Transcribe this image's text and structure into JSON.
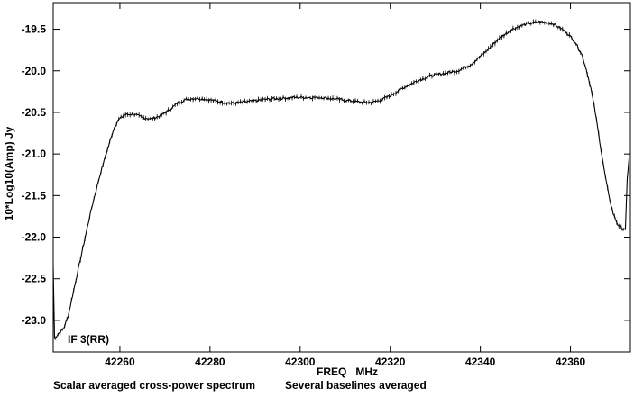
{
  "chart_data": {
    "type": "line",
    "xlabel": "FREQ   MHz",
    "ylabel": "10*Log10(Amp) Jy",
    "annotation": "IF 3(RR)",
    "caption_left": "Scalar averaged cross-power spectrum",
    "caption_right": "Several baselines averaged",
    "xlim": [
      42245.2,
      42373.3
    ],
    "ylim": [
      -23.38,
      -19.18
    ],
    "x_ticks": [
      42260,
      42280,
      42300,
      42320,
      42340,
      42360
    ],
    "y_ticks": [
      -19.5,
      -20.0,
      -20.5,
      -21.0,
      -21.5,
      -22.0,
      -22.5,
      -23.0
    ],
    "x_tick_labels": [
      "42260",
      "42280",
      "42300",
      "42320",
      "42340",
      "42360"
    ],
    "y_tick_labels": [
      "-19.5",
      "-20.0",
      "-20.5",
      "-21.0",
      "-21.5",
      "-22.0",
      "-22.5",
      "-23.0"
    ],
    "series": [
      {
        "color": "#000000",
        "points": [
          [
            42245.2,
            -22.35
          ],
          [
            42245.5,
            -23.22
          ],
          [
            42246.5,
            -23.15
          ],
          [
            42247.5,
            -23.1
          ],
          [
            42248.5,
            -22.95
          ],
          [
            42249.5,
            -22.7
          ],
          [
            42250.5,
            -22.45
          ],
          [
            42251.5,
            -22.2
          ],
          [
            42252.5,
            -21.95
          ],
          [
            42253.5,
            -21.7
          ],
          [
            42254.5,
            -21.48
          ],
          [
            42255.5,
            -21.27
          ],
          [
            42256.5,
            -21.08
          ],
          [
            42257.5,
            -20.9
          ],
          [
            42258.5,
            -20.72
          ],
          [
            42259.5,
            -20.6
          ],
          [
            42261.0,
            -20.53
          ],
          [
            42263.0,
            -20.52
          ],
          [
            42265.0,
            -20.56
          ],
          [
            42267.0,
            -20.58
          ],
          [
            42269.0,
            -20.54
          ],
          [
            42271.0,
            -20.47
          ],
          [
            42273.0,
            -20.38
          ],
          [
            42275.0,
            -20.34
          ],
          [
            42277.0,
            -20.33
          ],
          [
            42279.0,
            -20.34
          ],
          [
            42281.0,
            -20.36
          ],
          [
            42283.0,
            -20.38
          ],
          [
            42285.0,
            -20.39
          ],
          [
            42287.0,
            -20.38
          ],
          [
            42290.0,
            -20.36
          ],
          [
            42293.0,
            -20.34
          ],
          [
            42296.0,
            -20.33
          ],
          [
            42299.0,
            -20.32
          ],
          [
            42302.0,
            -20.32
          ],
          [
            42305.0,
            -20.32
          ],
          [
            42308.0,
            -20.34
          ],
          [
            42311.0,
            -20.36
          ],
          [
            42314.0,
            -20.38
          ],
          [
            42316.0,
            -20.38
          ],
          [
            42318.0,
            -20.35
          ],
          [
            42320.0,
            -20.3
          ],
          [
            42323.0,
            -20.2
          ],
          [
            42326.0,
            -20.12
          ],
          [
            42329.0,
            -20.06
          ],
          [
            42332.0,
            -20.03
          ],
          [
            42335.0,
            -20.0
          ],
          [
            42338.0,
            -19.92
          ],
          [
            42341.0,
            -19.78
          ],
          [
            42344.0,
            -19.62
          ],
          [
            42347.0,
            -19.5
          ],
          [
            42350.0,
            -19.44
          ],
          [
            42353.0,
            -19.41
          ],
          [
            42356.0,
            -19.43
          ],
          [
            42359.0,
            -19.53
          ],
          [
            42361.0,
            -19.65
          ],
          [
            42362.5,
            -19.8
          ],
          [
            42363.5,
            -19.98
          ],
          [
            42364.5,
            -20.2
          ],
          [
            42365.5,
            -20.5
          ],
          [
            42366.5,
            -20.85
          ],
          [
            42367.5,
            -21.2
          ],
          [
            42368.5,
            -21.5
          ],
          [
            42369.5,
            -21.72
          ],
          [
            42370.5,
            -21.85
          ],
          [
            42371.5,
            -21.9
          ],
          [
            42372.2,
            -21.9
          ],
          [
            42372.6,
            -21.3
          ],
          [
            42373.0,
            -21.05
          ]
        ]
      }
    ]
  }
}
